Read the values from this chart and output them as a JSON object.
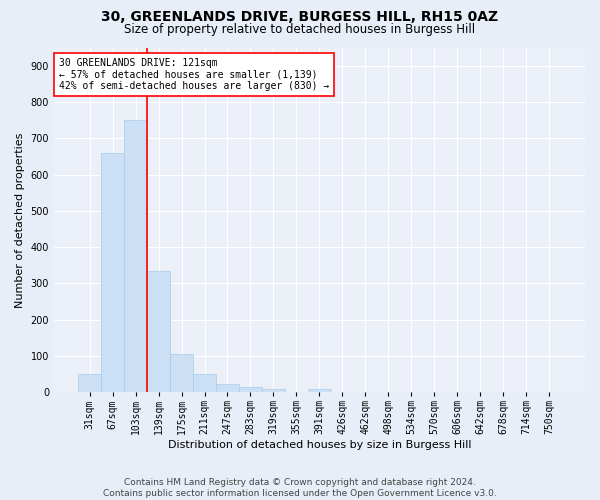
{
  "title_line1": "30, GREENLANDS DRIVE, BURGESS HILL, RH15 0AZ",
  "title_line2": "Size of property relative to detached houses in Burgess Hill",
  "xlabel": "Distribution of detached houses by size in Burgess Hill",
  "ylabel": "Number of detached properties",
  "footnote": "Contains HM Land Registry data © Crown copyright and database right 2024.\nContains public sector information licensed under the Open Government Licence v3.0.",
  "bin_labels": [
    "31sqm",
    "67sqm",
    "103sqm",
    "139sqm",
    "175sqm",
    "211sqm",
    "247sqm",
    "283sqm",
    "319sqm",
    "355sqm",
    "391sqm",
    "426sqm",
    "462sqm",
    "498sqm",
    "534sqm",
    "570sqm",
    "606sqm",
    "642sqm",
    "678sqm",
    "714sqm",
    "750sqm"
  ],
  "bar_heights": [
    50,
    660,
    750,
    335,
    105,
    50,
    22,
    15,
    10,
    0,
    8,
    0,
    0,
    0,
    0,
    0,
    0,
    0,
    0,
    0,
    0
  ],
  "bar_color": "#cce0f5",
  "bar_edge_color": "#aacce8",
  "vline_x": 2.5,
  "annotation_text": "30 GREENLANDS DRIVE: 121sqm\n← 57% of detached houses are smaller (1,139)\n42% of semi-detached houses are larger (830) →",
  "annotation_box_color": "white",
  "annotation_box_edgecolor": "red",
  "vline_color": "red",
  "ylim": [
    0,
    950
  ],
  "yticks": [
    0,
    100,
    200,
    300,
    400,
    500,
    600,
    700,
    800,
    900
  ],
  "bg_color": "#e8eef8",
  "plot_bg_color": "#eaeff8",
  "grid_color": "white",
  "title_fontsize": 10,
  "subtitle_fontsize": 8.5,
  "label_fontsize": 8,
  "tick_fontsize": 7,
  "footnote_fontsize": 6.5,
  "annotation_fontsize": 7
}
